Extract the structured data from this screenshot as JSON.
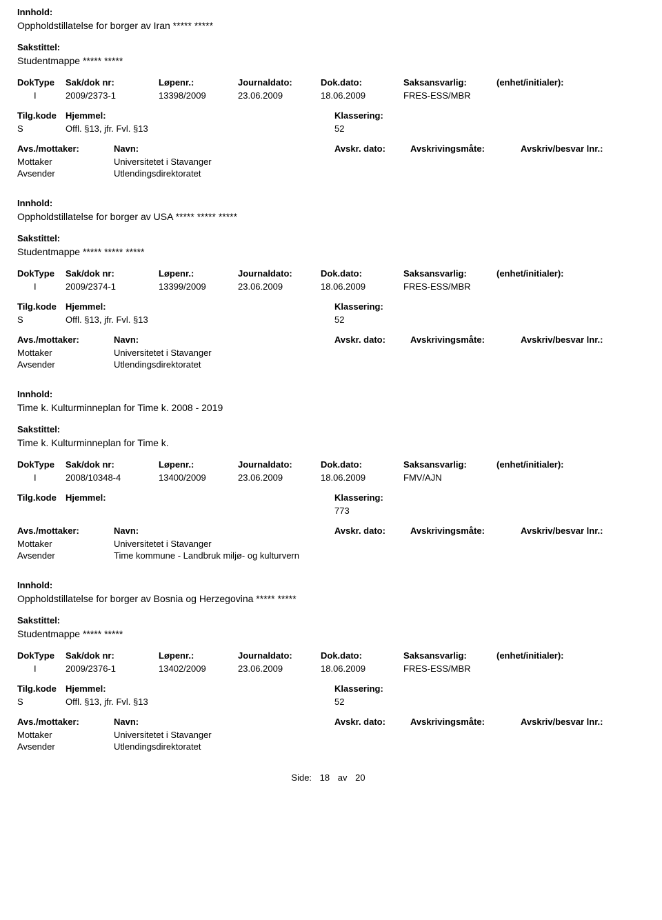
{
  "labels": {
    "innhold": "Innhold:",
    "sakstittel": "Sakstittel:",
    "doktype": "DokType",
    "saknr": "Sak/dok nr:",
    "lopenr": "Løpenr.:",
    "journaldato": "Journaldato:",
    "dokdato": "Dok.dato:",
    "saksansvarlig": "Saksansvarlig:",
    "enhet": "(enhet/initialer):",
    "tilgkode": "Tilg.kode",
    "hjemmel": "Hjemmel:",
    "klassering": "Klassering:",
    "avs_mottaker": "Avs./mottaker:",
    "navn": "Navn:",
    "avskr_dato": "Avskr. dato:",
    "avskrivingsmate": "Avskrivingsmåte:",
    "avskriv_besvar": "Avskriv/besvar lnr.:",
    "mottaker": "Mottaker",
    "avsender": "Avsender",
    "side": "Side:",
    "av": "av"
  },
  "footer": {
    "page": "18",
    "total": "20"
  },
  "entries": [
    {
      "innhold": "Oppholdstillatelse for borger av Iran ***** *****",
      "sakstittel": "Studentmappe ***** *****",
      "doktype": "I",
      "saknr": "2009/2373-1",
      "lopenr": "13398/2009",
      "jdato": "23.06.2009",
      "ddato": "18.06.2009",
      "saks": "FRES-ESS/MBR",
      "tilgkode": "S",
      "hjemmel": "Offl. §13, jfr. Fvl. §13",
      "klass": "52",
      "mottaker_navn": "Universitetet i Stavanger",
      "avsender_navn": "Utlendingsdirektoratet"
    },
    {
      "innhold": "Oppholdstillatelse for borger av USA ***** ***** *****",
      "sakstittel": "Studentmappe ***** ***** *****",
      "doktype": "I",
      "saknr": "2009/2374-1",
      "lopenr": "13399/2009",
      "jdato": "23.06.2009",
      "ddato": "18.06.2009",
      "saks": "FRES-ESS/MBR",
      "tilgkode": "S",
      "hjemmel": "Offl. §13, jfr. Fvl. §13",
      "klass": "52",
      "mottaker_navn": "Universitetet i Stavanger",
      "avsender_navn": "Utlendingsdirektoratet"
    },
    {
      "innhold": "Time k. Kulturminneplan for Time k. 2008 - 2019",
      "sakstittel": "Time k. Kulturminneplan for Time k.",
      "doktype": "I",
      "saknr": "2008/10348-4",
      "lopenr": "13400/2009",
      "jdato": "23.06.2009",
      "ddato": "18.06.2009",
      "saks": "FMV/AJN",
      "tilgkode": "",
      "hjemmel": "",
      "klass": "773",
      "mottaker_navn": "Universitetet i Stavanger",
      "avsender_navn": "Time kommune - Landbruk miljø- og kulturvern"
    },
    {
      "innhold": "Oppholdstillatelse for borger av Bosnia og Herzegovina ***** *****",
      "sakstittel": "Studentmappe ***** *****",
      "doktype": "I",
      "saknr": "2009/2376-1",
      "lopenr": "13402/2009",
      "jdato": "23.06.2009",
      "ddato": "18.06.2009",
      "saks": "FRES-ESS/MBR",
      "tilgkode": "S",
      "hjemmel": "Offl. §13, jfr. Fvl. §13",
      "klass": "52",
      "mottaker_navn": "Universitetet i Stavanger",
      "avsender_navn": "Utlendingsdirektoratet"
    }
  ]
}
